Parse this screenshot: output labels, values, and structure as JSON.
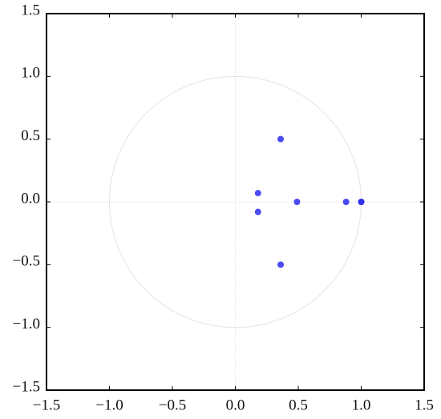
{
  "chart_data": {
    "type": "scatter",
    "color": "#2b2bf0",
    "x": [
      0.36,
      0.36,
      0.18,
      0.18,
      0.49,
      0.88,
      1.0,
      1.0
    ],
    "values": [
      0.5,
      -0.5,
      0.07,
      -0.08,
      0,
      0,
      0,
      0
    ],
    "xlim": [
      -1.5,
      1.5
    ],
    "ylim": [
      -1.5,
      1.5
    ],
    "xticks": [
      {
        "value": -1.5,
        "label": "−1.5"
      },
      {
        "value": -1,
        "label": "−1.0"
      },
      {
        "value": -0.5,
        "label": "−0.5"
      },
      {
        "value": 0,
        "label": "0.0"
      },
      0.5,
      {
        "value": 1,
        "label": "1.0"
      },
      1.5
    ],
    "yticks": [
      {
        "value": -1.5,
        "label": "−1.5"
      },
      {
        "value": -1,
        "label": "−1.0"
      },
      {
        "value": -0.5,
        "label": "−0.5"
      },
      {
        "value": 0,
        "label": "0.0"
      },
      0.5,
      {
        "value": 1,
        "label": "1.0"
      },
      1.5
    ],
    "unit_circle": true,
    "zero_lines": true
  }
}
